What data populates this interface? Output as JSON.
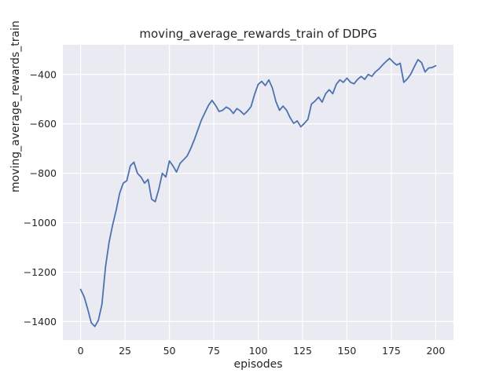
{
  "figure": {
    "title": "moving_average_rewards_train of DDPG",
    "xlabel": "episodes",
    "ylabel": "moving_average_rewards_train"
  },
  "chart_data": {
    "type": "line",
    "title": "moving_average_rewards_train of DDPG",
    "xlabel": "episodes",
    "ylabel": "moving_average_rewards_train",
    "legend": "none",
    "grid": true,
    "plot_bg_color": "#eaeaf2",
    "grid_color": "#ffffff",
    "line_color": "#4c72b0",
    "xlim": [
      -10,
      210
    ],
    "ylim": [
      -1475,
      -280
    ],
    "x_ticks": [
      0,
      25,
      50,
      75,
      100,
      125,
      150,
      175,
      200
    ],
    "y_ticks": [
      -400,
      -600,
      -800,
      -1000,
      -1200,
      -1400
    ],
    "x": [
      0,
      2,
      4,
      6,
      8,
      10,
      12,
      14,
      16,
      18,
      20,
      22,
      24,
      26,
      28,
      30,
      32,
      34,
      36,
      38,
      40,
      42,
      44,
      46,
      48,
      50,
      52,
      54,
      56,
      58,
      60,
      62,
      64,
      66,
      68,
      70,
      72,
      74,
      76,
      78,
      80,
      82,
      84,
      86,
      88,
      90,
      92,
      94,
      96,
      98,
      100,
      102,
      104,
      106,
      108,
      110,
      112,
      114,
      116,
      118,
      120,
      122,
      124,
      126,
      128,
      130,
      132,
      134,
      136,
      138,
      140,
      142,
      144,
      146,
      148,
      150,
      152,
      154,
      156,
      158,
      160,
      162,
      164,
      166,
      168,
      170,
      172,
      174,
      176,
      178,
      180,
      182,
      184,
      186,
      188,
      190,
      192,
      194,
      196,
      198,
      200
    ],
    "y": [
      -1270,
      -1300,
      -1350,
      -1405,
      -1420,
      -1395,
      -1330,
      -1180,
      -1080,
      -1010,
      -950,
      -880,
      -840,
      -830,
      -770,
      -755,
      -800,
      -815,
      -840,
      -825,
      -905,
      -915,
      -865,
      -800,
      -815,
      -750,
      -770,
      -795,
      -760,
      -745,
      -730,
      -700,
      -665,
      -625,
      -585,
      -555,
      -525,
      -505,
      -525,
      -550,
      -545,
      -532,
      -540,
      -558,
      -538,
      -548,
      -562,
      -548,
      -530,
      -480,
      -440,
      -428,
      -445,
      -422,
      -455,
      -510,
      -545,
      -528,
      -545,
      -575,
      -598,
      -588,
      -612,
      -598,
      -582,
      -520,
      -508,
      -492,
      -512,
      -478,
      -462,
      -478,
      -440,
      -422,
      -432,
      -415,
      -432,
      -438,
      -420,
      -408,
      -420,
      -400,
      -408,
      -390,
      -378,
      -362,
      -348,
      -335,
      -350,
      -362,
      -355,
      -432,
      -418,
      -398,
      -368,
      -340,
      -352,
      -390,
      -374,
      -372,
      -365
    ]
  }
}
